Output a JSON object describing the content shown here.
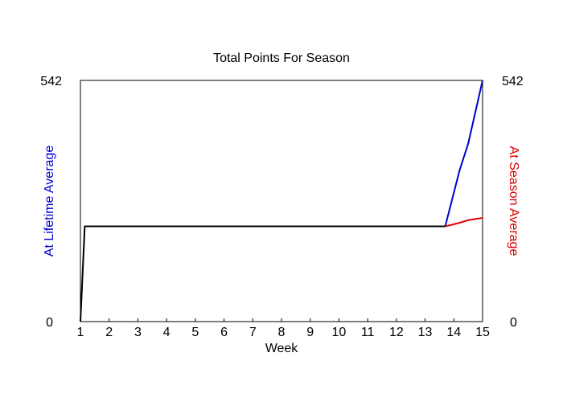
{
  "chart_data": {
    "type": "line",
    "title": "Total Points For Season",
    "xlabel": "Week",
    "ylabel_left": "At Lifetime Average",
    "ylabel_right": "At Season Average",
    "x_ticks": [
      "1",
      "2",
      "3",
      "4",
      "5",
      "6",
      "7",
      "8",
      "9",
      "10",
      "11",
      "12",
      "13",
      "14",
      "15"
    ],
    "xlim": [
      1,
      15
    ],
    "ylim": [
      0,
      542
    ],
    "y_tick_labels_left": [
      "0",
      "542"
    ],
    "y_tick_labels_right": [
      "0",
      "542"
    ],
    "grid": false,
    "colors": {
      "actual": "#000000",
      "lifetime": "#0000cc",
      "season": "#e00000",
      "axis": "#000000"
    },
    "series": [
      {
        "key": "lifetime",
        "color": "#0000cc",
        "x": [
          13.7,
          14.2,
          14.5,
          15
        ],
        "y": [
          214,
          340,
          400,
          542
        ]
      },
      {
        "key": "season",
        "color": "#e00000",
        "x": [
          13.7,
          14.2,
          14.5,
          15
        ],
        "y": [
          214,
          222,
          228,
          233
        ]
      },
      {
        "key": "actual",
        "color": "#000000",
        "x": [
          1,
          1.15,
          13.7
        ],
        "y": [
          0,
          214,
          214
        ]
      }
    ]
  }
}
